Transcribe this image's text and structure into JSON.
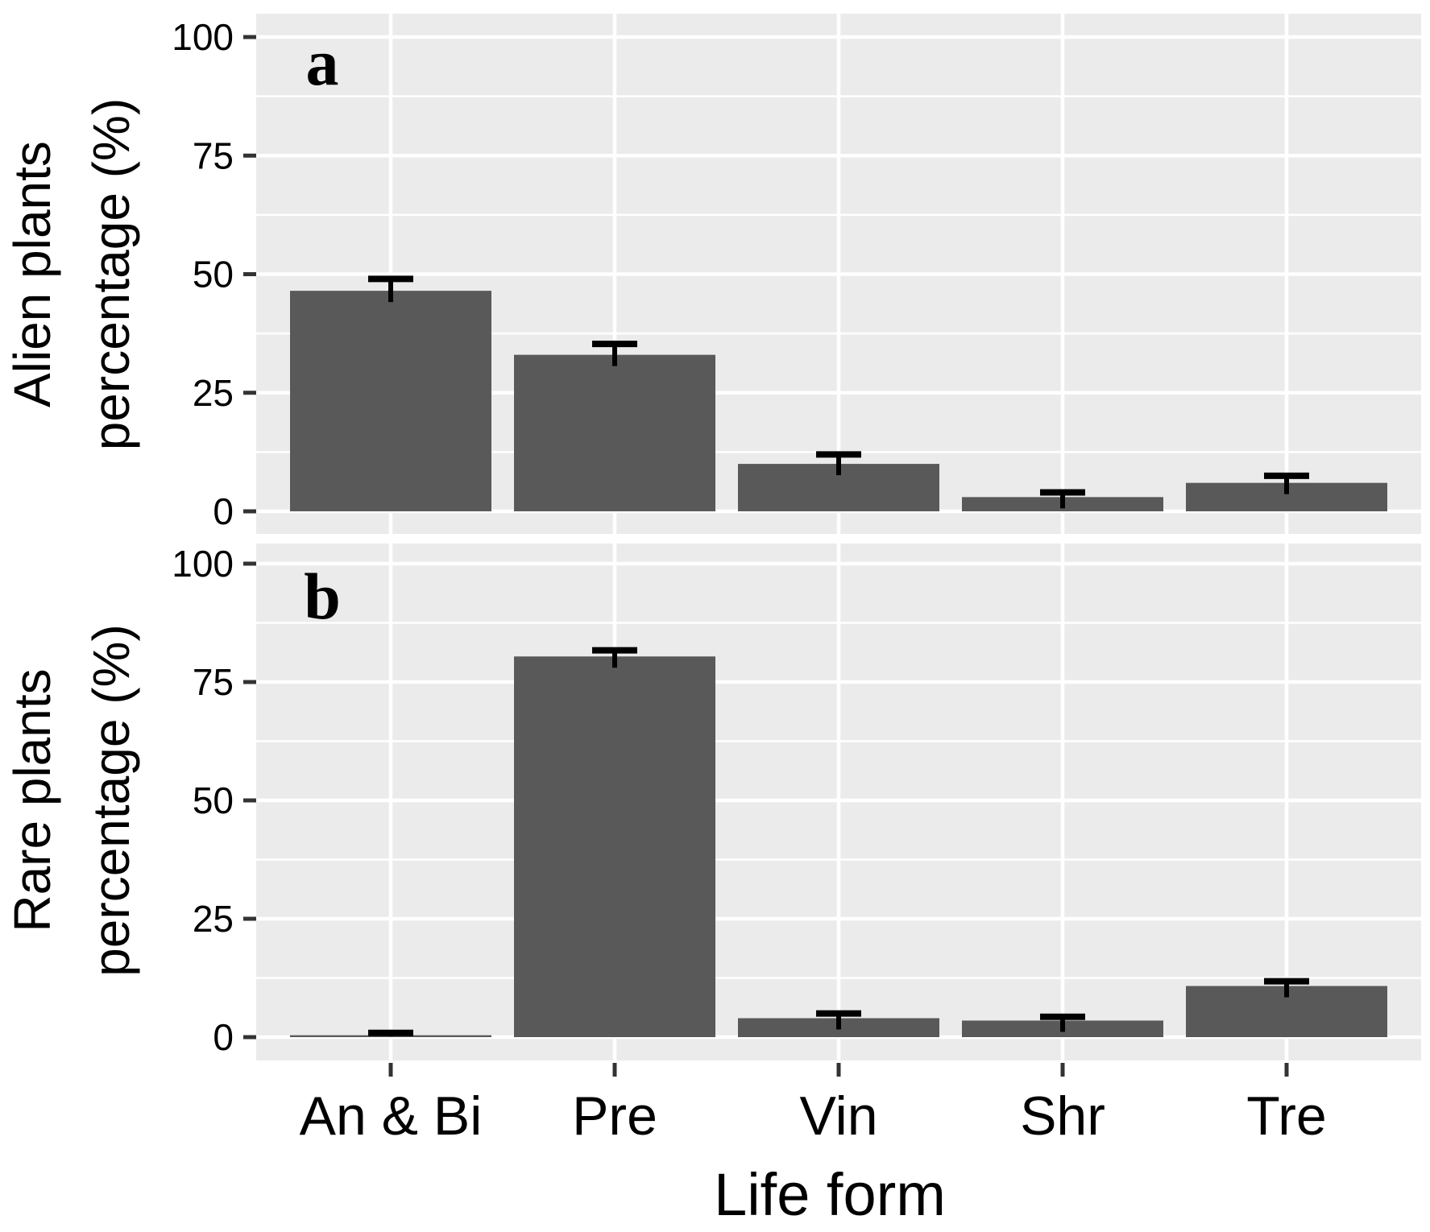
{
  "figure": {
    "x_axis_title": "Life form",
    "panel_a_letter": "a",
    "panel_b_letter": "b",
    "colors": {
      "bar": "#595959",
      "panel_bg": "#EBEBEB",
      "grid": "#FFFFFF",
      "error": "#000000",
      "tick": "#333333",
      "text": "#000000"
    }
  },
  "chart_data": [
    {
      "type": "bar",
      "panel_label": "a",
      "title": "",
      "ylabel": "Alien plants percentage (%)",
      "ylabel_line1": "Alien plants",
      "ylabel_line2": "percentage (%)",
      "xlabel": "Life form",
      "categories": [
        "An & Bi",
        "Pre",
        "Vin",
        "Shr",
        "Tre"
      ],
      "values": [
        46.5,
        33,
        10,
        3,
        6
      ],
      "error_upper": [
        49,
        35.3,
        12,
        4,
        7.5
      ],
      "yticks": [
        0,
        25,
        50,
        75,
        100
      ],
      "yticks_minor": [
        12.5,
        37.5,
        62.5,
        87.5
      ],
      "ylim": [
        0,
        105
      ],
      "grid": true,
      "legend": false
    },
    {
      "type": "bar",
      "panel_label": "b",
      "title": "",
      "ylabel": "Rare plants percentage (%)",
      "ylabel_line1": "Rare plants",
      "ylabel_line2": "percentage (%)",
      "xlabel": "Life form",
      "categories": [
        "An & Bi",
        "Pre",
        "Vin",
        "Shr",
        "Tre"
      ],
      "values": [
        0.4,
        80.4,
        4,
        3.5,
        10.8
      ],
      "error_upper": [
        0.9,
        81.7,
        5,
        4.3,
        11.8
      ],
      "yticks": [
        0,
        25,
        50,
        75,
        100
      ],
      "yticks_minor": [
        12.5,
        37.5,
        62.5,
        87.5
      ],
      "ylim": [
        0,
        105
      ],
      "grid": true,
      "legend": false
    }
  ]
}
